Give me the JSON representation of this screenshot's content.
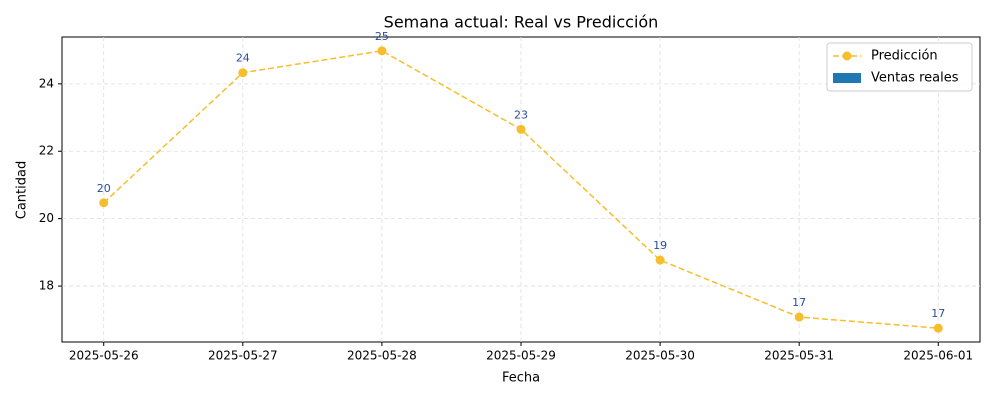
{
  "chart_data": {
    "type": "line",
    "title": "Semana actual: Real vs Predicción",
    "x_label": "Fecha",
    "y_label": "Cantidad",
    "categories": [
      "2025-05-26",
      "2025-05-27",
      "2025-05-28",
      "2025-05-29",
      "2025-05-30",
      "2025-05-31",
      "2025-06-01"
    ],
    "series": [
      {
        "name": "Predicción",
        "type": "line",
        "line_style": "dashed",
        "marker": "circle",
        "color": "#f6be2c",
        "label_color": "#2a4d9b",
        "values": [
          20.47,
          24.33,
          24.98,
          22.65,
          18.77,
          17.08,
          16.75
        ],
        "value_labels": [
          "20",
          "24",
          "25",
          "23",
          "19",
          "17",
          "17"
        ]
      },
      {
        "name": "Ventas reales",
        "type": "bar",
        "color": "#1f77b4",
        "values": [
          null,
          null,
          null,
          null,
          null,
          null,
          null
        ]
      }
    ],
    "ylim": [
      16.34,
      25.39
    ],
    "yticks": [
      18,
      20,
      22,
      24
    ],
    "grid": true,
    "legend": "upper right"
  }
}
